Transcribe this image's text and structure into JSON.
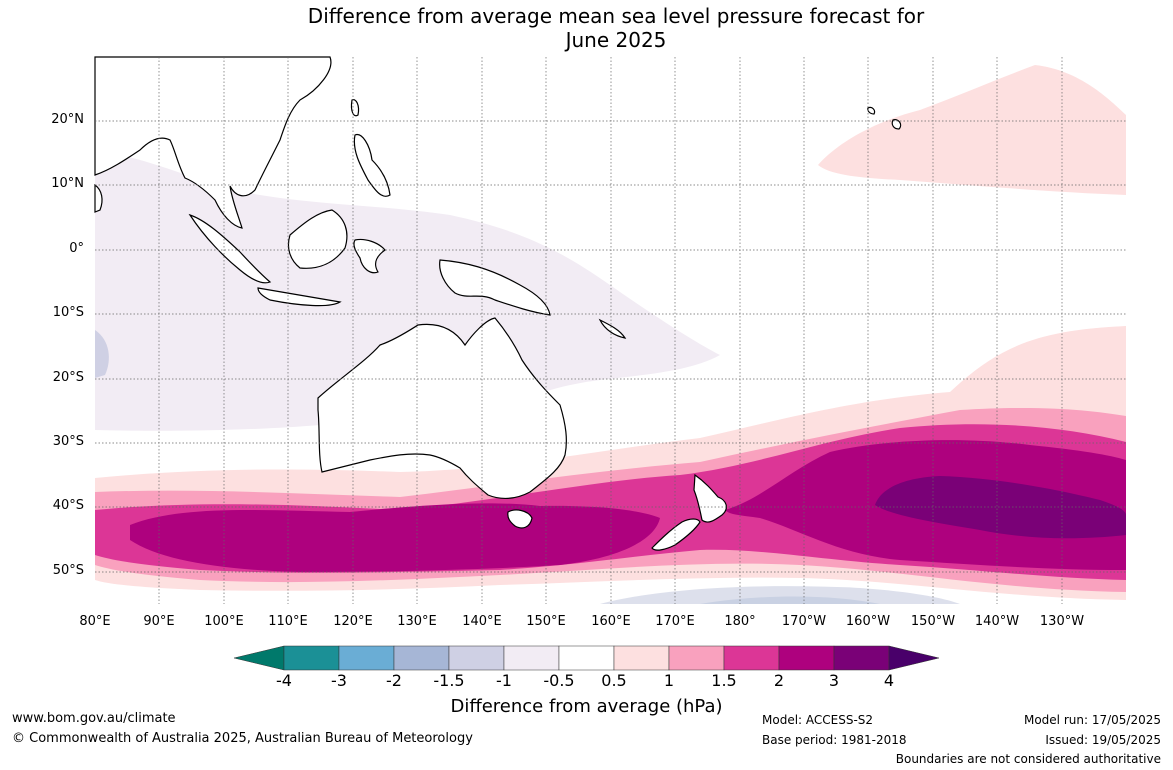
{
  "title": {
    "line1": "Difference from average mean sea level pressure forecast for",
    "line2": "June 2025"
  },
  "lat_labels": [
    "20°N",
    "10°N",
    "0°",
    "10°S",
    "20°S",
    "30°S",
    "40°S",
    "50°S"
  ],
  "lon_labels": [
    "80°E",
    "90°E",
    "100°E",
    "110°E",
    "120°E",
    "130°E",
    "140°E",
    "150°E",
    "160°E",
    "170°E",
    "180°",
    "170°W",
    "160°W",
    "150°W",
    "140°W",
    "130°W"
  ],
  "colorbar": {
    "title": "Difference from average (hPa)",
    "ticks": [
      "-4",
      "-3",
      "-2",
      "-1.5",
      "-1",
      "-0.5",
      "0.5",
      "1",
      "1.5",
      "2",
      "3",
      "4"
    ],
    "colors": [
      "#00796b",
      "#1b9096",
      "#6aadd5",
      "#a6b6d6",
      "#cfd0e4",
      "#f2ecf4",
      "#ffffff",
      "#fde0e0",
      "#f9a1be",
      "#dc3696",
      "#ae017e",
      "#7a0177",
      "#49006a"
    ]
  },
  "footer": {
    "website": "www.bom.gov.au/climate",
    "copyright": "© Commonwealth of Australia 2025, Australian Bureau of Meteorology",
    "model": "Model: ACCESS-S2",
    "base_period": "Base period: 1981-2018",
    "model_run": "Model run: 17/05/2025",
    "issued": "Issued: 19/05/2025",
    "disclaimer": "Boundaries are not considered authoritative"
  }
}
